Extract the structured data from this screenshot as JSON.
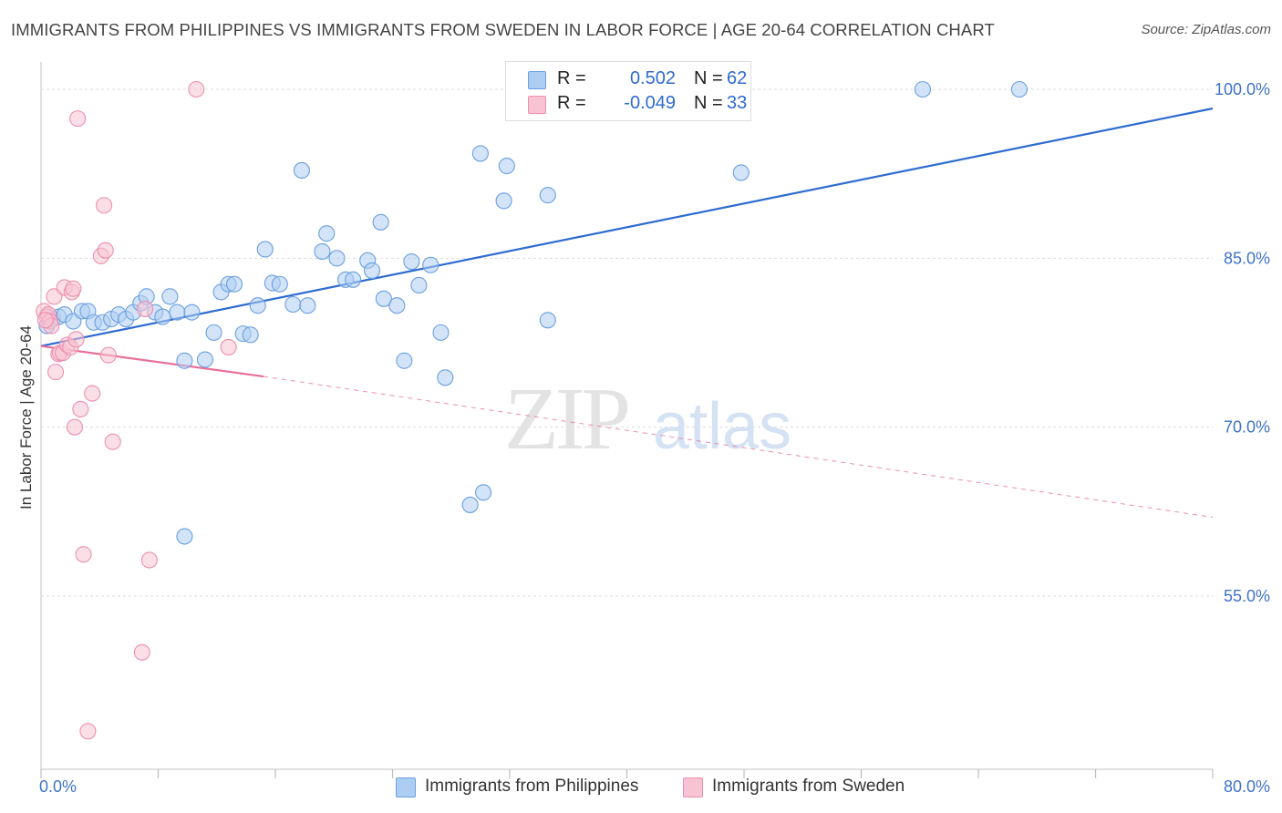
{
  "title": "IMMIGRANTS FROM PHILIPPINES VS IMMIGRANTS FROM SWEDEN IN LABOR FORCE | AGE 20-64 CORRELATION CHART",
  "source": "Source: ZipAtlas.com",
  "watermark": {
    "zip": "ZIP",
    "atlas": "atlas"
  },
  "stats": {
    "r_label": "R =",
    "n_label": "N =",
    "rows": [
      {
        "r": "0.502",
        "n": "62",
        "color": "#aecdf3",
        "border": "#6a9fe0"
      },
      {
        "r": "-0.049",
        "n": "33",
        "color": "#f8c4d4",
        "border": "#ec8fae"
      }
    ]
  },
  "legend": {
    "items": [
      {
        "label": "Immigrants from Philippines",
        "color": "#aecdf3",
        "border": "#6a9fe0"
      },
      {
        "label": "Immigrants from Sweden",
        "color": "#f8c4d4",
        "border": "#ec8fae"
      }
    ]
  },
  "chart_data": {
    "type": "scatter",
    "title": "IMMIGRANTS FROM PHILIPPINES VS IMMIGRANTS FROM SWEDEN IN LABOR FORCE | AGE 20-64 CORRELATION CHART",
    "xlabel": "",
    "ylabel": "In Labor Force | Age 20-64",
    "xlim": [
      0,
      80
    ],
    "ylim": [
      40,
      102
    ],
    "x_tick_labels": [
      {
        "value": 0,
        "label": "0.0%"
      },
      {
        "value": 80,
        "label": "80.0%"
      }
    ],
    "y_tick_labels": [
      {
        "value": 55,
        "label": "55.0%"
      },
      {
        "value": 70,
        "label": "70.0%"
      },
      {
        "value": 85,
        "label": "85.0%"
      },
      {
        "value": 100,
        "label": "100.0%"
      }
    ],
    "grid": true,
    "legend_position": "bottom-center",
    "series": [
      {
        "name": "Immigrants from Philippines",
        "color": "#6a9fe0",
        "fill": "#aecdf3",
        "trend": {
          "x": [
            0,
            80
          ],
          "y": [
            77.2,
            98.3
          ],
          "style": "solid"
        },
        "points": [
          [
            0.4,
            79.0
          ],
          [
            0.8,
            79.6
          ],
          [
            1.2,
            79.8
          ],
          [
            1.6,
            80.0
          ],
          [
            2.2,
            79.4
          ],
          [
            2.8,
            80.3
          ],
          [
            3.2,
            80.3
          ],
          [
            3.6,
            79.3
          ],
          [
            4.2,
            79.3
          ],
          [
            4.8,
            79.6
          ],
          [
            5.3,
            80.0
          ],
          [
            5.8,
            79.6
          ],
          [
            6.3,
            80.2
          ],
          [
            6.8,
            81.0
          ],
          [
            7.2,
            81.6
          ],
          [
            7.8,
            80.2
          ],
          [
            8.3,
            79.8
          ],
          [
            8.8,
            81.6
          ],
          [
            9.3,
            80.2
          ],
          [
            10.3,
            80.2
          ],
          [
            9.8,
            75.9
          ],
          [
            11.2,
            76.0
          ],
          [
            11.8,
            78.4
          ],
          [
            12.3,
            82.0
          ],
          [
            12.8,
            82.7
          ],
          [
            13.2,
            82.7
          ],
          [
            13.8,
            78.3
          ],
          [
            14.3,
            78.2
          ],
          [
            14.8,
            80.8
          ],
          [
            15.3,
            85.8
          ],
          [
            15.8,
            82.8
          ],
          [
            16.3,
            82.7
          ],
          [
            17.2,
            80.9
          ],
          [
            18.2,
            80.8
          ],
          [
            17.8,
            92.8
          ],
          [
            19.2,
            85.6
          ],
          [
            19.5,
            87.2
          ],
          [
            20.2,
            85.0
          ],
          [
            20.8,
            83.1
          ],
          [
            21.3,
            83.1
          ],
          [
            22.3,
            84.8
          ],
          [
            22.6,
            83.9
          ],
          [
            23.2,
            88.2
          ],
          [
            23.4,
            81.4
          ],
          [
            24.3,
            80.8
          ],
          [
            24.8,
            75.9
          ],
          [
            25.3,
            84.7
          ],
          [
            25.8,
            82.6
          ],
          [
            26.6,
            84.4
          ],
          [
            27.3,
            78.4
          ],
          [
            27.6,
            74.4
          ],
          [
            29.3,
            63.1
          ],
          [
            30.2,
            64.2
          ],
          [
            30.0,
            94.3
          ],
          [
            31.6,
            90.1
          ],
          [
            31.8,
            93.2
          ],
          [
            34.6,
            90.6
          ],
          [
            34.6,
            79.5
          ],
          [
            9.8,
            60.3
          ],
          [
            47.8,
            92.6
          ],
          [
            60.2,
            100.0
          ],
          [
            66.8,
            100.0
          ]
        ]
      },
      {
        "name": "Immigrants from Sweden",
        "color": "#ec8fae",
        "fill": "#f8c4d4",
        "trend": {
          "x": [
            0,
            15.2
          ],
          "y": [
            77.2,
            74.5
          ],
          "style": "solid",
          "dashed_extension": {
            "x": [
              15.2,
              80
            ],
            "y": [
              74.5,
              62.0
            ]
          }
        },
        "points": [
          [
            0.2,
            80.3
          ],
          [
            0.4,
            79.8
          ],
          [
            0.5,
            80.0
          ],
          [
            0.6,
            79.4
          ],
          [
            0.7,
            79.0
          ],
          [
            0.9,
            81.6
          ],
          [
            1.0,
            74.9
          ],
          [
            1.2,
            76.5
          ],
          [
            1.3,
            76.6
          ],
          [
            1.5,
            76.6
          ],
          [
            1.6,
            82.4
          ],
          [
            1.8,
            77.3
          ],
          [
            2.0,
            77.1
          ],
          [
            2.1,
            82.0
          ],
          [
            2.2,
            82.3
          ],
          [
            2.3,
            70.0
          ],
          [
            2.4,
            77.8
          ],
          [
            2.5,
            97.4
          ],
          [
            2.7,
            71.6
          ],
          [
            2.9,
            58.7
          ],
          [
            3.2,
            43.0
          ],
          [
            3.5,
            73.0
          ],
          [
            4.1,
            85.2
          ],
          [
            4.3,
            89.7
          ],
          [
            4.4,
            85.7
          ],
          [
            4.6,
            76.4
          ],
          [
            4.9,
            68.7
          ],
          [
            6.9,
            50.0
          ],
          [
            7.1,
            80.5
          ],
          [
            7.4,
            58.2
          ],
          [
            10.6,
            100.0
          ],
          [
            12.8,
            77.1
          ],
          [
            0.3,
            79.5
          ]
        ]
      }
    ]
  }
}
